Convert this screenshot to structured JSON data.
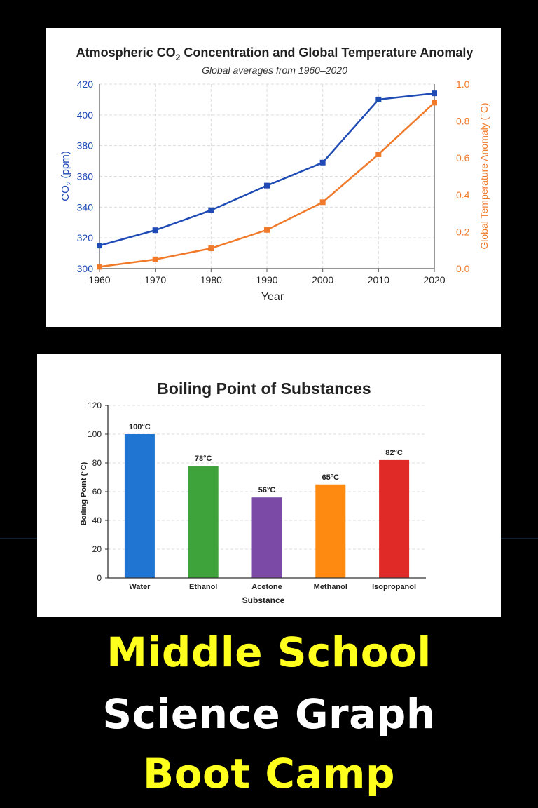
{
  "chart_data": [
    {
      "type": "line",
      "title_main": "Atmospheric CO",
      "title_sub": "2",
      "title_rest": " Concentration and Global Temperature Anomaly",
      "subtitle": "Global averages from 1960–2020",
      "xlabel": "Year",
      "ylabel_left_main": "CO",
      "ylabel_left_sub": "2",
      "ylabel_left_rest": " (ppm)",
      "ylabel_right": "Global Temperature Anomaly (°C)",
      "x": [
        1960,
        1970,
        1980,
        1990,
        2000,
        2010,
        2020
      ],
      "xlim": [
        1960,
        2020
      ],
      "ylim_left": [
        300,
        420
      ],
      "ylim_right": [
        0.0,
        1.0
      ],
      "yticks_left": [
        "300",
        "320",
        "340",
        "360",
        "380",
        "400",
        "420"
      ],
      "yticks_right": [
        "0.0",
        "0.2",
        "0.4",
        "0.6",
        "0.8",
        "1.0"
      ],
      "grid": true,
      "series": [
        {
          "axis": "left",
          "color": "#1f4bb5",
          "values": [
            315,
            325,
            338,
            354,
            369,
            410,
            414
          ]
        },
        {
          "axis": "right",
          "color": "#f07a2a",
          "values": [
            0.01,
            0.05,
            0.11,
            0.21,
            0.36,
            0.62,
            0.9
          ]
        }
      ]
    },
    {
      "type": "bar",
      "title": "Boiling Point of Substances",
      "xlabel": "Substance",
      "ylabel": "Boiling Point (°C)",
      "categories": [
        "Water",
        "Ethanol",
        "Acetone",
        "Methanol",
        "Isopropanol"
      ],
      "values": [
        100,
        78,
        56,
        65,
        82
      ],
      "labels": [
        "100°C",
        "78°C",
        "56°C",
        "65°C",
        "82°C"
      ],
      "colors": [
        "#1f75d1",
        "#3ea33b",
        "#7b4aa6",
        "#ff8a12",
        "#e02a27"
      ],
      "ylim": [
        0,
        120
      ],
      "yticks": [
        "0",
        "20",
        "40",
        "60",
        "80",
        "100",
        "120"
      ],
      "grid": true
    }
  ],
  "headline": {
    "line1": "Middle School",
    "line2": "Science Graph",
    "line3": "Boot Camp"
  }
}
